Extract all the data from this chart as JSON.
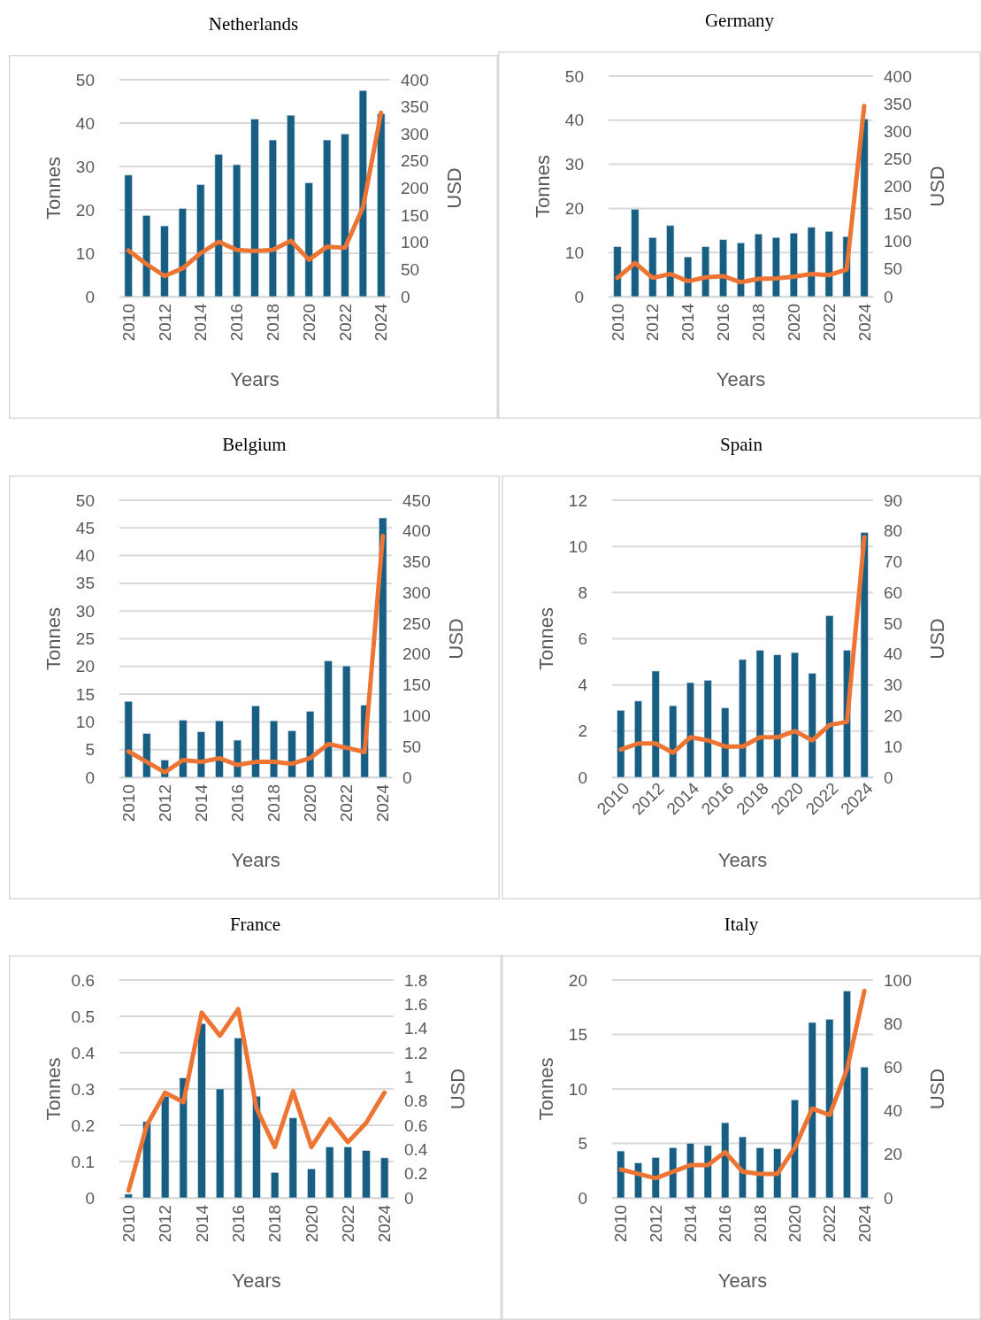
{
  "chart_data": [
    {
      "type": "bar",
      "title": "Netherlands",
      "xlabel": "Years",
      "ylabel": "Tonnes",
      "y2label": "USD",
      "categories": [
        "2010",
        null,
        "2012",
        null,
        "2014",
        null,
        "2016",
        null,
        "2018",
        null,
        "2020",
        null,
        "2022",
        null,
        "2024"
      ],
      "ylim": [
        0,
        50
      ],
      "yticks": [
        0,
        10,
        20,
        30,
        40,
        50
      ],
      "y2lim": [
        0,
        400
      ],
      "y2ticks": [
        0,
        50,
        100,
        150,
        200,
        250,
        300,
        350,
        400
      ],
      "grid": "y",
      "series": [
        {
          "color": "#175e82",
          "values": [
            28,
            18.7,
            16.3,
            20.3,
            25.8,
            32.8,
            30.4,
            40.9,
            36.1,
            41.8,
            26.2,
            36.1,
            37.5,
            47.5,
            42.1
          ]
        },
        {
          "type": "line",
          "axis": "y2",
          "color": "#ed7432",
          "marker": "none",
          "line_style": "solid",
          "values": [
            85,
            60,
            38,
            52,
            80,
            101,
            86,
            84,
            86,
            103,
            68,
            92,
            90,
            165,
            339
          ]
        }
      ]
    },
    {
      "type": "bar",
      "title": "Germany",
      "xlabel": "Years",
      "ylabel": "Tonnes",
      "y2label": "USD",
      "categories": [
        "2010",
        null,
        "2012",
        null,
        "2014",
        null,
        "2016",
        null,
        "2018",
        null,
        "2020",
        null,
        "2022",
        null,
        "2024"
      ],
      "ylim": [
        0,
        50
      ],
      "yticks": [
        0,
        10,
        20,
        30,
        40,
        50
      ],
      "y2lim": [
        0,
        400
      ],
      "y2ticks": [
        0,
        50,
        100,
        150,
        200,
        250,
        300,
        350,
        400
      ],
      "grid": "y",
      "series": [
        {
          "color": "#175e82",
          "values": [
            11.3,
            19.8,
            13.4,
            16.1,
            9,
            11.3,
            12.9,
            12.2,
            14.2,
            13.4,
            14.4,
            15.7,
            14.8,
            13.6,
            40.3
          ]
        },
        {
          "type": "line",
          "axis": "y2",
          "color": "#ed7432",
          "marker": "none",
          "line_style": "solid",
          "values": [
            34,
            61,
            34,
            41,
            28,
            35,
            37,
            26,
            32,
            33,
            36,
            41,
            39,
            49,
            346
          ]
        }
      ]
    },
    {
      "type": "bar",
      "title": "Belgium",
      "xlabel": "Years",
      "ylabel": "Tonnes",
      "y2label": "USD",
      "categories": [
        "2010",
        null,
        "2012",
        null,
        "2014",
        null,
        "2016",
        null,
        "2018",
        null,
        "2020",
        null,
        "2022",
        null,
        "2024"
      ],
      "ylim": [
        0,
        50
      ],
      "yticks": [
        0,
        5,
        10,
        15,
        20,
        25,
        30,
        35,
        40,
        45,
        50
      ],
      "y2lim": [
        0,
        450
      ],
      "y2ticks": [
        0,
        50,
        100,
        150,
        200,
        250,
        300,
        350,
        400,
        450
      ],
      "grid": "y",
      "series": [
        {
          "color": "#175e82",
          "values": [
            13.7,
            7.9,
            3.1,
            10.3,
            8.2,
            10.2,
            6.7,
            12.9,
            10.2,
            8.4,
            11.9,
            21,
            20.1,
            13,
            46.8
          ]
        },
        {
          "type": "line",
          "axis": "y2",
          "color": "#ed7432",
          "marker": "none",
          "line_style": "solid",
          "values": [
            42,
            25,
            8,
            28,
            25,
            31,
            20,
            25,
            25,
            22,
            31,
            54,
            48,
            41,
            392
          ]
        }
      ]
    },
    {
      "type": "bar",
      "title": "Spain",
      "xlabel": "Years",
      "ylabel": "Tonnes",
      "y2label": "USD",
      "categories": [
        "2010",
        null,
        "2012",
        null,
        "2014",
        null,
        "2016",
        null,
        "2018",
        null,
        "2020",
        null,
        "2022",
        null,
        "2024"
      ],
      "ylim": [
        0,
        12
      ],
      "yticks": [
        0,
        2,
        4,
        6,
        8,
        10,
        12
      ],
      "y2lim": [
        0,
        90
      ],
      "y2ticks": [
        0,
        10,
        20,
        30,
        40,
        50,
        60,
        70,
        80,
        90
      ],
      "grid": "y",
      "series": [
        {
          "color": "#175e82",
          "values": [
            2.9,
            3.3,
            4.6,
            3.1,
            4.1,
            4.2,
            3,
            5.1,
            5.5,
            5.3,
            5.4,
            4.5,
            7,
            5.5,
            10.6
          ]
        },
        {
          "type": "line",
          "axis": "y2",
          "color": "#ed7432",
          "marker": "none",
          "line_style": "solid",
          "values": [
            9,
            11,
            11,
            8,
            13,
            12,
            10,
            10,
            13,
            13,
            15,
            12,
            17,
            18,
            78
          ]
        }
      ]
    },
    {
      "type": "bar",
      "title": "France",
      "xlabel": "Years",
      "ylabel": "Tonnes",
      "y2label": "USD",
      "categories": [
        "2010",
        null,
        "2012",
        null,
        "2014",
        null,
        "2016",
        null,
        "2018",
        null,
        "2020",
        null,
        "2022",
        null,
        "2024"
      ],
      "ylim": [
        0,
        0.6
      ],
      "yticks": [
        0,
        0.1,
        0.2,
        0.3,
        0.4,
        0.5,
        0.6
      ],
      "y2lim": [
        0,
        1.8
      ],
      "y2ticks": [
        0,
        0.2,
        0.4,
        0.6,
        0.8,
        1,
        1.2,
        1.4,
        1.6,
        1.8
      ],
      "grid": "y",
      "series": [
        {
          "color": "#175e82",
          "values": [
            0.01,
            0.21,
            0.28,
            0.33,
            0.48,
            0.3,
            0.44,
            0.28,
            0.07,
            0.22,
            0.08,
            0.14,
            0.14,
            0.13,
            0.11
          ]
        },
        {
          "type": "line",
          "axis": "y2",
          "color": "#ed7432",
          "marker": "none",
          "line_style": "solid",
          "values": [
            0.06,
            0.6,
            0.87,
            0.79,
            1.53,
            1.34,
            1.56,
            0.74,
            0.42,
            0.88,
            0.42,
            0.65,
            0.46,
            0.62,
            0.87
          ]
        }
      ]
    },
    {
      "type": "bar",
      "title": "Italy",
      "xlabel": "Years",
      "ylabel": "Tonnes",
      "y2label": "USD",
      "categories": [
        "2010",
        null,
        "2012",
        null,
        "2014",
        null,
        "2016",
        null,
        "2018",
        null,
        "2020",
        null,
        "2022",
        null,
        "2024"
      ],
      "ylim": [
        0,
        20
      ],
      "yticks": [
        0,
        5,
        10,
        15,
        20
      ],
      "y2lim": [
        0,
        100
      ],
      "y2ticks": [
        0,
        20,
        40,
        60,
        80,
        100
      ],
      "grid": "y",
      "series": [
        {
          "color": "#175e82",
          "values": [
            4.3,
            3.2,
            3.7,
            4.6,
            5,
            4.8,
            6.9,
            5.6,
            4.6,
            4.5,
            9,
            16.1,
            16.4,
            19,
            12
          ]
        },
        {
          "type": "line",
          "axis": "y2",
          "color": "#ed7432",
          "marker": "none",
          "line_style": "solid",
          "values": [
            13,
            11,
            9,
            12,
            15,
            15,
            21,
            12,
            11,
            11,
            23,
            41,
            38,
            59,
            95
          ]
        }
      ]
    }
  ]
}
